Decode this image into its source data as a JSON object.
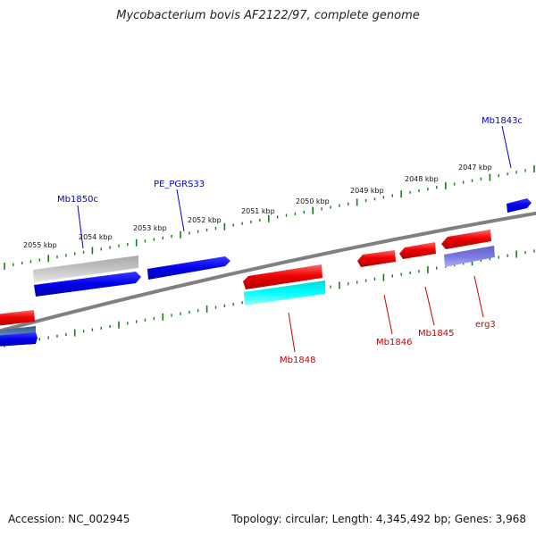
{
  "title": "Mycobacterium bovis AF2122/97, complete genome",
  "footer": {
    "accession": "Accession: NC_002945",
    "summary": "Topology: circular; Length: 4,345,492 bp; Genes: 3,968"
  },
  "colors": {
    "backbone": "#808080",
    "tick": "#1a7a1a",
    "forward_label": "#0000cc",
    "reverse_label": "#cc0000"
  },
  "scale_labels": [
    "2047 kbp",
    "2048 kbp",
    "2049 kbp",
    "2050 kbp",
    "2051 kbp",
    "2052 kbp",
    "2053 kbp",
    "2054 kbp",
    "2055 kbp"
  ],
  "gene_labels": {
    "forward": [
      "Mb1843c",
      "PE_PGRS33",
      "Mb1850c"
    ],
    "reverse": [
      "Mb1848",
      "Mb1846",
      "Mb1845",
      "erg3"
    ]
  }
}
